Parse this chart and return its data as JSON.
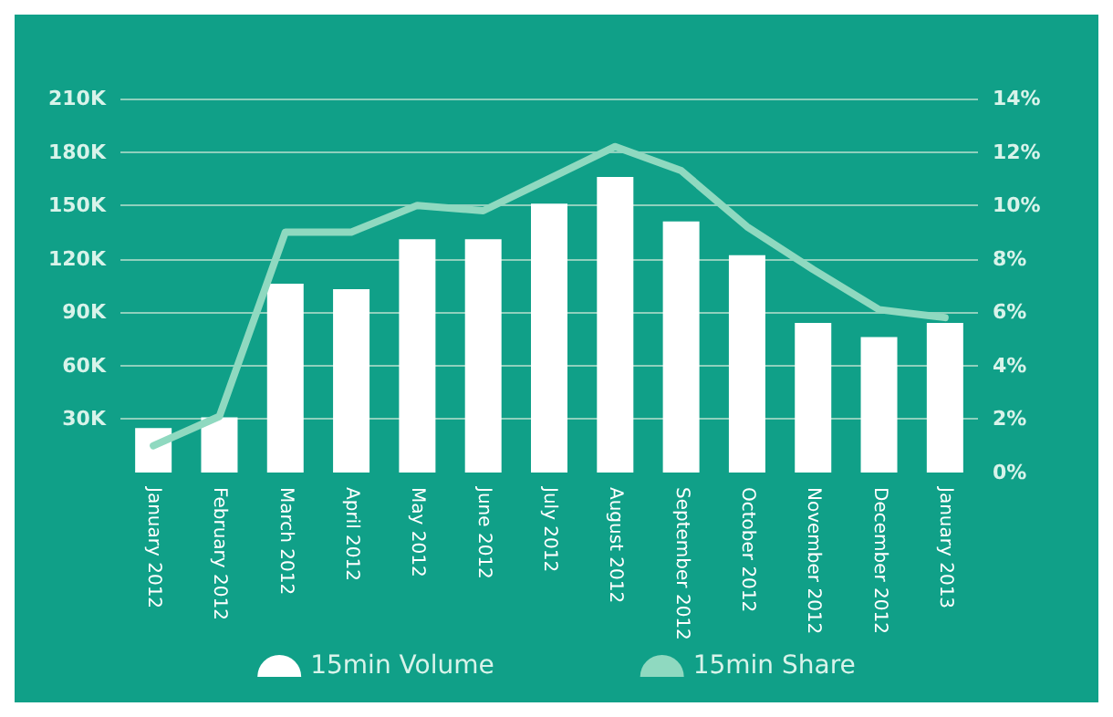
{
  "chart_data": {
    "type": "bar",
    "categories": [
      "January 2012",
      "February 2012",
      "March 2012",
      "April 2012",
      "May 2012",
      "June 2012",
      "July 2012",
      "August 2012",
      "September 2012",
      "October 2012",
      "November 2012",
      "December 2012",
      "January 2013"
    ],
    "series": [
      {
        "name": "15min Volume",
        "color": "#ffffff",
        "values": [
          25,
          31,
          106,
          103,
          131,
          131,
          151,
          166,
          141,
          122,
          84,
          76,
          84
        ]
      },
      {
        "name": "15min Share",
        "type": "line",
        "axis": "y2",
        "color": "#8fd9c0",
        "values": [
          1.0,
          2.1,
          9.0,
          9.0,
          10.0,
          9.8,
          11.0,
          12.2,
          11.3,
          9.2,
          7.6,
          6.1,
          5.8
        ]
      }
    ],
    "ylim": [
      0,
      210
    ],
    "yticks": [
      {
        "value": 30,
        "label": "30K"
      },
      {
        "value": 60,
        "label": "60K"
      },
      {
        "value": 90,
        "label": "90K"
      },
      {
        "value": 120,
        "label": "120K"
      },
      {
        "value": 150,
        "label": "150K"
      },
      {
        "value": 180,
        "label": "180K"
      },
      {
        "value": 210,
        "label": "210K"
      }
    ],
    "y2lim": [
      0,
      14
    ],
    "y2ticks": [
      {
        "value": 0,
        "label": "0%"
      },
      {
        "value": 2,
        "label": "2%"
      },
      {
        "value": 4,
        "label": "4%"
      },
      {
        "value": 6,
        "label": "6%"
      },
      {
        "value": 8,
        "label": "8%"
      },
      {
        "value": 10,
        "label": "10%"
      },
      {
        "value": 12,
        "label": "12%"
      },
      {
        "value": 14,
        "label": "14%"
      }
    ],
    "grid": "y",
    "legend": "bottom",
    "marker": "none",
    "line_style": "solid"
  }
}
